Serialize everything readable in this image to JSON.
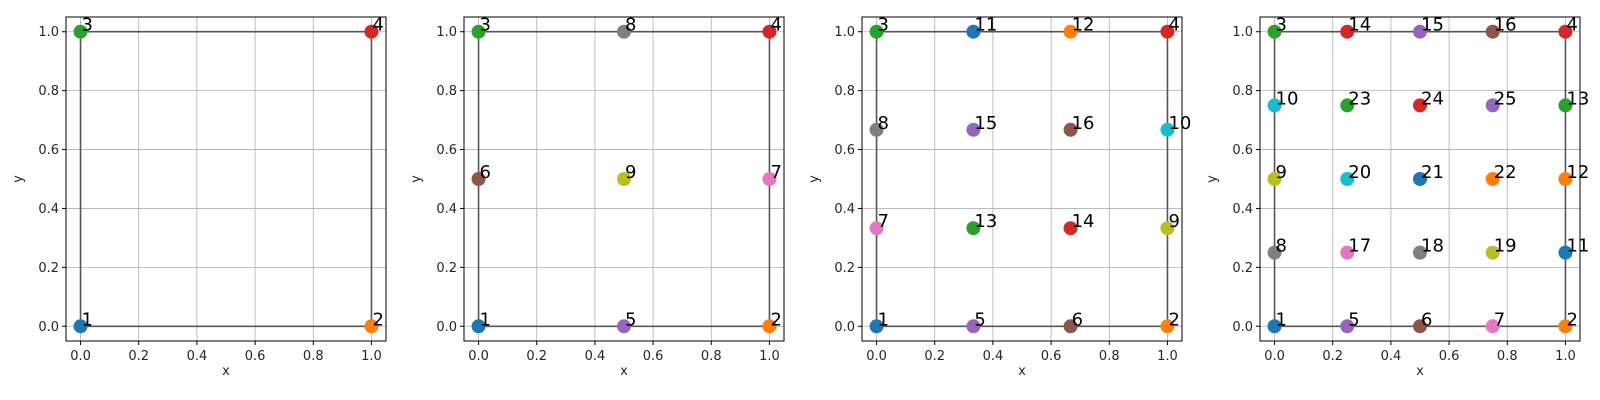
{
  "chart_data": [
    {
      "type": "scatter",
      "xlabel": "x",
      "ylabel": "y",
      "xlim": [
        -0.05,
        1.05
      ],
      "ylim": [
        -0.05,
        1.05
      ],
      "xticks": [
        "0.0",
        "0.2",
        "0.4",
        "0.6",
        "0.8",
        "1.0"
      ],
      "yticks": [
        "0.0",
        "0.2",
        "0.4",
        "0.6",
        "0.8",
        "1.0"
      ],
      "grid": true,
      "points": [
        {
          "label": "1",
          "x": 0,
          "y": 0,
          "color": "#1f77b4"
        },
        {
          "label": "2",
          "x": 1,
          "y": 0,
          "color": "#ff7f0e"
        },
        {
          "label": "3",
          "x": 0,
          "y": 1,
          "color": "#2ca02c"
        },
        {
          "label": "4",
          "x": 1,
          "y": 1,
          "color": "#d62728"
        }
      ]
    },
    {
      "type": "scatter",
      "xlabel": "x",
      "ylabel": "y",
      "xlim": [
        -0.05,
        1.05
      ],
      "ylim": [
        -0.05,
        1.05
      ],
      "xticks": [
        "0.0",
        "0.2",
        "0.4",
        "0.6",
        "0.8",
        "1.0"
      ],
      "yticks": [
        "0.0",
        "0.2",
        "0.4",
        "0.6",
        "0.8",
        "1.0"
      ],
      "grid": true,
      "points": [
        {
          "label": "1",
          "x": 0,
          "y": 0,
          "color": "#1f77b4"
        },
        {
          "label": "2",
          "x": 1,
          "y": 0,
          "color": "#ff7f0e"
        },
        {
          "label": "3",
          "x": 0,
          "y": 1,
          "color": "#2ca02c"
        },
        {
          "label": "4",
          "x": 1,
          "y": 1,
          "color": "#d62728"
        },
        {
          "label": "5",
          "x": 0.5,
          "y": 0,
          "color": "#9467bd"
        },
        {
          "label": "6",
          "x": 0,
          "y": 0.5,
          "color": "#8c564b"
        },
        {
          "label": "7",
          "x": 1,
          "y": 0.5,
          "color": "#e377c2"
        },
        {
          "label": "8",
          "x": 0.5,
          "y": 1,
          "color": "#7f7f7f"
        },
        {
          "label": "9",
          "x": 0.5,
          "y": 0.5,
          "color": "#bcbd22"
        }
      ]
    },
    {
      "type": "scatter",
      "xlabel": "x",
      "ylabel": "y",
      "xlim": [
        -0.05,
        1.05
      ],
      "ylim": [
        -0.05,
        1.05
      ],
      "xticks": [
        "0.0",
        "0.2",
        "0.4",
        "0.6",
        "0.8",
        "1.0"
      ],
      "yticks": [
        "0.0",
        "0.2",
        "0.4",
        "0.6",
        "0.8",
        "1.0"
      ],
      "grid": true,
      "points": [
        {
          "label": "1",
          "x": 0,
          "y": 0,
          "color": "#1f77b4"
        },
        {
          "label": "2",
          "x": 1,
          "y": 0,
          "color": "#ff7f0e"
        },
        {
          "label": "3",
          "x": 0,
          "y": 1,
          "color": "#2ca02c"
        },
        {
          "label": "4",
          "x": 1,
          "y": 1,
          "color": "#d62728"
        },
        {
          "label": "5",
          "x": 0.333,
          "y": 0,
          "color": "#9467bd"
        },
        {
          "label": "6",
          "x": 0.667,
          "y": 0,
          "color": "#8c564b"
        },
        {
          "label": "7",
          "x": 0,
          "y": 0.333,
          "color": "#e377c2"
        },
        {
          "label": "8",
          "x": 0,
          "y": 0.667,
          "color": "#7f7f7f"
        },
        {
          "label": "9",
          "x": 1,
          "y": 0.333,
          "color": "#bcbd22"
        },
        {
          "label": "10",
          "x": 1,
          "y": 0.667,
          "color": "#17becf"
        },
        {
          "label": "11",
          "x": 0.333,
          "y": 1,
          "color": "#1f77b4"
        },
        {
          "label": "12",
          "x": 0.667,
          "y": 1,
          "color": "#ff7f0e"
        },
        {
          "label": "13",
          "x": 0.333,
          "y": 0.333,
          "color": "#2ca02c"
        },
        {
          "label": "14",
          "x": 0.667,
          "y": 0.333,
          "color": "#d62728"
        },
        {
          "label": "15",
          "x": 0.333,
          "y": 0.667,
          "color": "#9467bd"
        },
        {
          "label": "16",
          "x": 0.667,
          "y": 0.667,
          "color": "#8c564b"
        }
      ]
    },
    {
      "type": "scatter",
      "xlabel": "x",
      "ylabel": "y",
      "xlim": [
        -0.05,
        1.05
      ],
      "ylim": [
        -0.05,
        1.05
      ],
      "xticks": [
        "0.0",
        "0.2",
        "0.4",
        "0.6",
        "0.8",
        "1.0"
      ],
      "yticks": [
        "0.0",
        "0.2",
        "0.4",
        "0.6",
        "0.8",
        "1.0"
      ],
      "grid": true,
      "points": [
        {
          "label": "1",
          "x": 0,
          "y": 0,
          "color": "#1f77b4"
        },
        {
          "label": "2",
          "x": 1,
          "y": 0,
          "color": "#ff7f0e"
        },
        {
          "label": "3",
          "x": 0,
          "y": 1,
          "color": "#2ca02c"
        },
        {
          "label": "4",
          "x": 1,
          "y": 1,
          "color": "#d62728"
        },
        {
          "label": "5",
          "x": 0.25,
          "y": 0,
          "color": "#9467bd"
        },
        {
          "label": "6",
          "x": 0.5,
          "y": 0,
          "color": "#8c564b"
        },
        {
          "label": "7",
          "x": 0.75,
          "y": 0,
          "color": "#e377c2"
        },
        {
          "label": "8",
          "x": 0,
          "y": 0.25,
          "color": "#7f7f7f"
        },
        {
          "label": "9",
          "x": 0,
          "y": 0.5,
          "color": "#bcbd22"
        },
        {
          "label": "10",
          "x": 0,
          "y": 0.75,
          "color": "#17becf"
        },
        {
          "label": "11",
          "x": 1,
          "y": 0.25,
          "color": "#1f77b4"
        },
        {
          "label": "12",
          "x": 1,
          "y": 0.5,
          "color": "#ff7f0e"
        },
        {
          "label": "13",
          "x": 1,
          "y": 0.75,
          "color": "#2ca02c"
        },
        {
          "label": "14",
          "x": 0.25,
          "y": 1,
          "color": "#d62728"
        },
        {
          "label": "15",
          "x": 0.5,
          "y": 1,
          "color": "#9467bd"
        },
        {
          "label": "16",
          "x": 0.75,
          "y": 1,
          "color": "#8c564b"
        },
        {
          "label": "17",
          "x": 0.25,
          "y": 0.25,
          "color": "#e377c2"
        },
        {
          "label": "18",
          "x": 0.5,
          "y": 0.25,
          "color": "#7f7f7f"
        },
        {
          "label": "19",
          "x": 0.75,
          "y": 0.25,
          "color": "#bcbd22"
        },
        {
          "label": "20",
          "x": 0.25,
          "y": 0.5,
          "color": "#17becf"
        },
        {
          "label": "21",
          "x": 0.5,
          "y": 0.5,
          "color": "#1f77b4"
        },
        {
          "label": "22",
          "x": 0.75,
          "y": 0.5,
          "color": "#ff7f0e"
        },
        {
          "label": "23",
          "x": 0.25,
          "y": 0.75,
          "color": "#2ca02c"
        },
        {
          "label": "24",
          "x": 0.5,
          "y": 0.75,
          "color": "#d62728"
        },
        {
          "label": "25",
          "x": 0.75,
          "y": 0.75,
          "color": "#9467bd"
        }
      ]
    }
  ]
}
